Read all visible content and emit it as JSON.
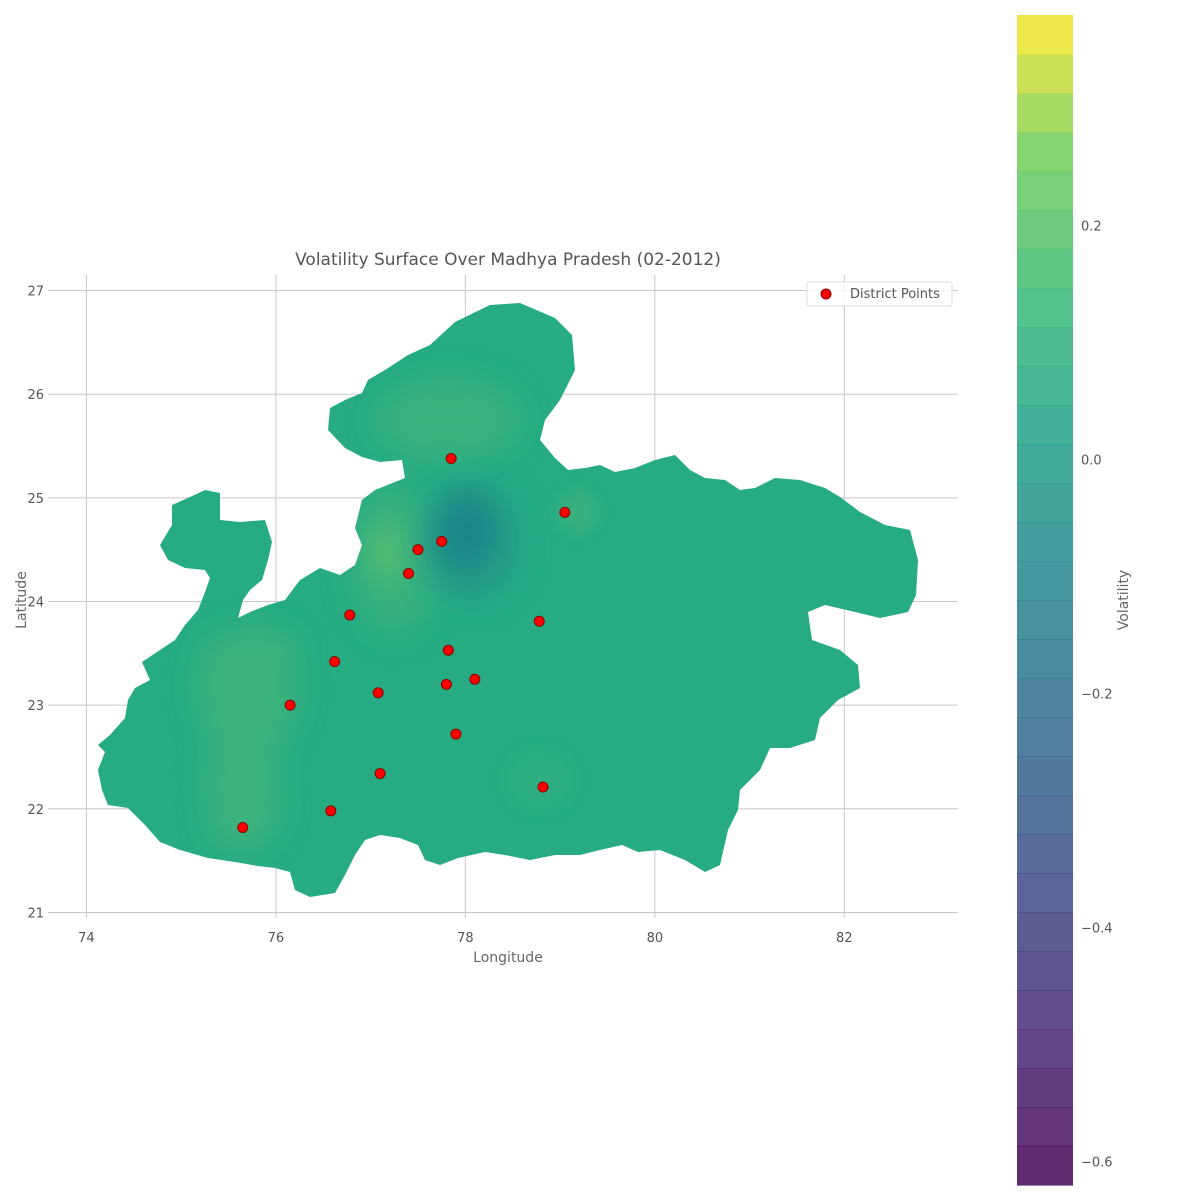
{
  "chart_data": {
    "type": "heatmap",
    "title": "Volatility Surface Over Madhya Pradesh (02-2012)",
    "xlabel": "Longitude",
    "ylabel": "Latitude",
    "xlim": [
      73.7,
      83.2
    ],
    "ylim": [
      20.85,
      27.15
    ],
    "xticks": [
      74,
      76,
      78,
      80,
      82
    ],
    "yticks": [
      21,
      22,
      23,
      24,
      25,
      26,
      27
    ],
    "grid": true,
    "base_volatility": 0.0,
    "legend": {
      "label": "District Points",
      "position": "top-right"
    },
    "colorbar": {
      "label": "Volatility",
      "range": [
        -0.62,
        0.38
      ],
      "ticks": [
        0.2,
        0.0,
        -0.2,
        -0.4,
        -0.6
      ],
      "tick_labels": [
        "0.2",
        "0.0",
        "−0.2",
        "−0.4",
        "−0.6"
      ]
    },
    "district_points": [
      {
        "lon": 77.4,
        "lat": 24.27
      },
      {
        "lon": 77.8,
        "lat": 23.2
      },
      {
        "lon": 77.9,
        "lat": 22.72
      },
      {
        "lon": 76.15,
        "lat": 23.0
      },
      {
        "lon": 75.65,
        "lat": 21.82
      },
      {
        "lon": 76.78,
        "lat": 23.87
      },
      {
        "lon": 76.62,
        "lat": 23.42
      },
      {
        "lon": 77.08,
        "lat": 23.12
      },
      {
        "lon": 77.1,
        "lat": 22.34
      },
      {
        "lon": 76.58,
        "lat": 21.98
      },
      {
        "lon": 77.5,
        "lat": 24.5
      },
      {
        "lon": 77.75,
        "lat": 24.58
      },
      {
        "lon": 77.85,
        "lat": 25.38
      },
      {
        "lon": 77.82,
        "lat": 23.53
      },
      {
        "lon": 78.1,
        "lat": 23.25
      },
      {
        "lon": 78.78,
        "lat": 23.81
      },
      {
        "lon": 78.82,
        "lat": 22.21
      },
      {
        "lon": 79.05,
        "lat": 24.86
      }
    ],
    "anomalies": [
      {
        "name": "low-volatility-core",
        "lon": 78.0,
        "lat": 24.6,
        "value": -0.12
      },
      {
        "name": "high-volatility-west",
        "lon": 75.55,
        "lat": 22.6,
        "value": 0.025
      },
      {
        "name": "high-volatility-north",
        "lon": 77.75,
        "lat": 25.8,
        "value": 0.02
      },
      {
        "name": "high-volatility-center",
        "lon": 77.0,
        "lat": 24.3,
        "value": 0.035
      }
    ]
  }
}
